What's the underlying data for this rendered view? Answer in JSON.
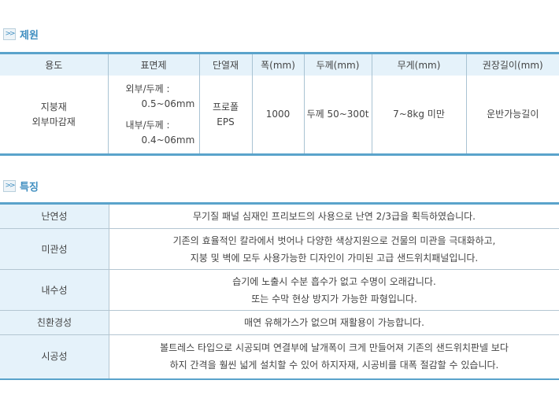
{
  "spec": {
    "title": "제원",
    "headers": [
      "용도",
      "표면제",
      "단열재",
      "폭(mm)",
      "두께(mm)",
      "무게(mm)",
      "권장길이(mm)"
    ],
    "row": {
      "usage": [
        "지붕재",
        "외부마감재"
      ],
      "surface": [
        "외부/두께 :",
        "0.5~06mm",
        "내부/두께 :",
        "0.4~06mm"
      ],
      "insulation": [
        "프로폴",
        "EPS"
      ],
      "width": "1000",
      "thickness": "두께 50~300t",
      "weight": "7~8kg 미만",
      "length": "운반가능길이"
    }
  },
  "features": {
    "title": "특징",
    "rows": [
      {
        "label": "난연성",
        "lines": [
          "무기질 패널 심재인 프리보드의 사용으로 난연 2/3급을 획득하였습니다."
        ]
      },
      {
        "label": "미관성",
        "lines": [
          "기존의 효율적인 칼라에서 벗어나 다양한 색상지원으로 건물의 미관을 극대화하고,",
          "지붕 및 벽에 모두 사용가능한 디자인이 가미된 고급 샌드위치패널입니다."
        ]
      },
      {
        "label": "내수성",
        "lines": [
          "습기에 노출시 수분 흡수가 없고 수명이 오래갑니다.",
          "또는 수막 현상 방지가 가능한 파형입니다."
        ]
      },
      {
        "label": "친환경성",
        "lines": [
          "매연 유해가스가 없으며 재활용이 가능합니다."
        ]
      },
      {
        "label": "시공성",
        "lines": [
          "볼트레스 타입으로 시공되며 연결부에 날개폭이 크게 만들어져 기존의 샌드위치판넬 보다",
          "하지 간격을 훨씬 넓게 설치할 수 있어 하지자재, 시공비를 대폭 절감할 수 있습니다."
        ]
      }
    ]
  },
  "icon": "double-chevron-right-icon",
  "accent": "#5aa3cb"
}
